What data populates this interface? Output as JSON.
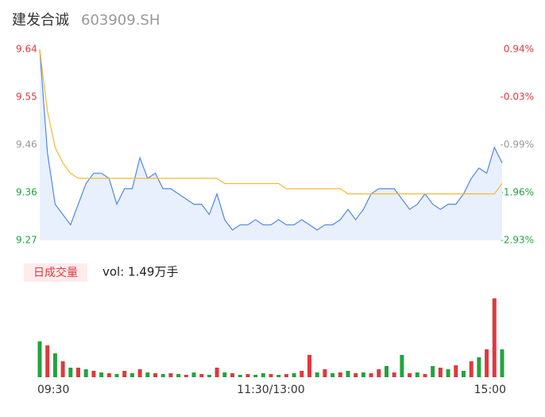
{
  "chart_data": {
    "type": "intraday",
    "title": "建发合诚",
    "code": "603909.SH",
    "categories": [
      "09:30",
      null,
      null,
      null,
      null,
      null,
      null,
      null,
      null,
      null,
      null,
      null,
      null,
      null,
      null,
      null,
      null,
      null,
      null,
      null,
      null,
      null,
      null,
      null,
      null,
      null,
      null,
      null,
      null,
      null,
      "11:30/13:00",
      null,
      null,
      null,
      null,
      null,
      null,
      null,
      null,
      null,
      null,
      null,
      null,
      null,
      null,
      null,
      null,
      null,
      null,
      null,
      null,
      null,
      null,
      null,
      null,
      null,
      null,
      null,
      null,
      null,
      "15:00"
    ],
    "series": [
      {
        "name": "price",
        "color": "#4f86f0",
        "values": [
          9.64,
          9.44,
          9.34,
          9.32,
          9.3,
          9.34,
          9.38,
          9.4,
          9.4,
          9.39,
          9.34,
          9.37,
          9.37,
          9.43,
          9.39,
          9.4,
          9.37,
          9.37,
          9.36,
          9.35,
          9.34,
          9.34,
          9.32,
          9.36,
          9.31,
          9.29,
          9.3,
          9.3,
          9.31,
          9.3,
          9.3,
          9.31,
          9.3,
          9.3,
          9.31,
          9.3,
          9.29,
          9.3,
          9.3,
          9.31,
          9.33,
          9.31,
          9.33,
          9.36,
          9.37,
          9.37,
          9.37,
          9.35,
          9.33,
          9.34,
          9.36,
          9.34,
          9.33,
          9.34,
          9.34,
          9.36,
          9.39,
          9.41,
          9.4,
          9.45,
          9.42
        ]
      },
      {
        "name": "average",
        "color": "#f5b836",
        "values": [
          9.64,
          9.52,
          9.45,
          9.42,
          9.4,
          9.39,
          9.39,
          9.39,
          9.39,
          9.39,
          9.39,
          9.39,
          9.39,
          9.39,
          9.39,
          9.39,
          9.39,
          9.39,
          9.39,
          9.39,
          9.39,
          9.39,
          9.39,
          9.39,
          9.38,
          9.38,
          9.38,
          9.38,
          9.38,
          9.38,
          9.38,
          9.38,
          9.37,
          9.37,
          9.37,
          9.37,
          9.37,
          9.37,
          9.37,
          9.37,
          9.36,
          9.36,
          9.36,
          9.36,
          9.36,
          9.36,
          9.36,
          9.36,
          9.36,
          9.36,
          9.36,
          9.36,
          9.36,
          9.36,
          9.36,
          9.36,
          9.36,
          9.36,
          9.36,
          9.36,
          9.38
        ]
      }
    ],
    "ylim": [
      9.27,
      9.64
    ],
    "yticks": [
      {
        "value": 9.64,
        "label": "9.64"
      },
      {
        "value": 9.5475,
        "label": "9.55"
      },
      {
        "value": 9.455,
        "label": "9.46"
      },
      {
        "value": 9.3625,
        "label": "9.36"
      },
      {
        "value": 9.27,
        "label": "9.27"
      }
    ],
    "ytick_colors": [
      "#e0383d",
      "#e0383d",
      "#999999",
      "#23a33e",
      "#23a33e"
    ],
    "y2lim": [
      -2.93,
      0.94
    ],
    "y2ticks": [
      {
        "value": 0.94,
        "label": "0.94%"
      },
      {
        "value": -0.0275,
        "label": "-0.03%"
      },
      {
        "value": -0.995,
        "label": "-0.99%"
      },
      {
        "value": -1.9625,
        "label": "-1.96%"
      },
      {
        "value": -2.93,
        "label": "-2.93%"
      }
    ],
    "area_color": "#e8f0fd",
    "volume_label": "日成交量",
    "volume_text": "vol: 1.49万手",
    "volume": [
      450,
      400,
      300,
      200,
      120,
      120,
      100,
      80,
      60,
      50,
      40,
      80,
      50,
      100,
      60,
      50,
      40,
      50,
      40,
      30,
      60,
      40,
      30,
      120,
      60,
      50,
      30,
      40,
      30,
      50,
      40,
      30,
      40,
      50,
      80,
      280,
      60,
      100,
      50,
      60,
      80,
      50,
      60,
      50,
      100,
      140,
      60,
      280,
      50,
      60,
      40,
      140,
      120,
      100,
      150,
      80,
      200,
      250,
      350,
      990,
      350
    ],
    "volume_colors": [
      "#23a33e",
      "#e0383d",
      "#23a33e",
      "#e0383d",
      "#23a33e",
      "#e0383d",
      "#23a33e",
      "#e0383d",
      "#23a33e",
      "#e0383d",
      "#23a33e",
      "#e0383d",
      "#23a33e",
      "#e0383d",
      "#23a33e",
      "#e0383d",
      "#23a33e",
      "#e0383d",
      "#23a33e",
      "#e0383d",
      "#23a33e",
      "#e0383d",
      "#23a33e",
      "#e0383d",
      "#23a33e",
      "#e0383d",
      "#23a33e",
      "#e0383d",
      "#23a33e",
      "#23a33e",
      "#e0383d",
      "#23a33e",
      "#e0383d",
      "#23a33e",
      "#e0383d",
      "#e0383d",
      "#23a33e",
      "#e0383d",
      "#23a33e",
      "#e0383d",
      "#23a33e",
      "#e0383d",
      "#23a33e",
      "#e0383d",
      "#e0383d",
      "#23a33e",
      "#e0383d",
      "#23a33e",
      "#e0383d",
      "#23a33e",
      "#e0383d",
      "#23a33e",
      "#e0383d",
      "#23a33e",
      "#e0383d",
      "#23a33e",
      "#e0383d",
      "#23a33e",
      "#e0383d",
      "#e0383d",
      "#23a33e"
    ]
  }
}
